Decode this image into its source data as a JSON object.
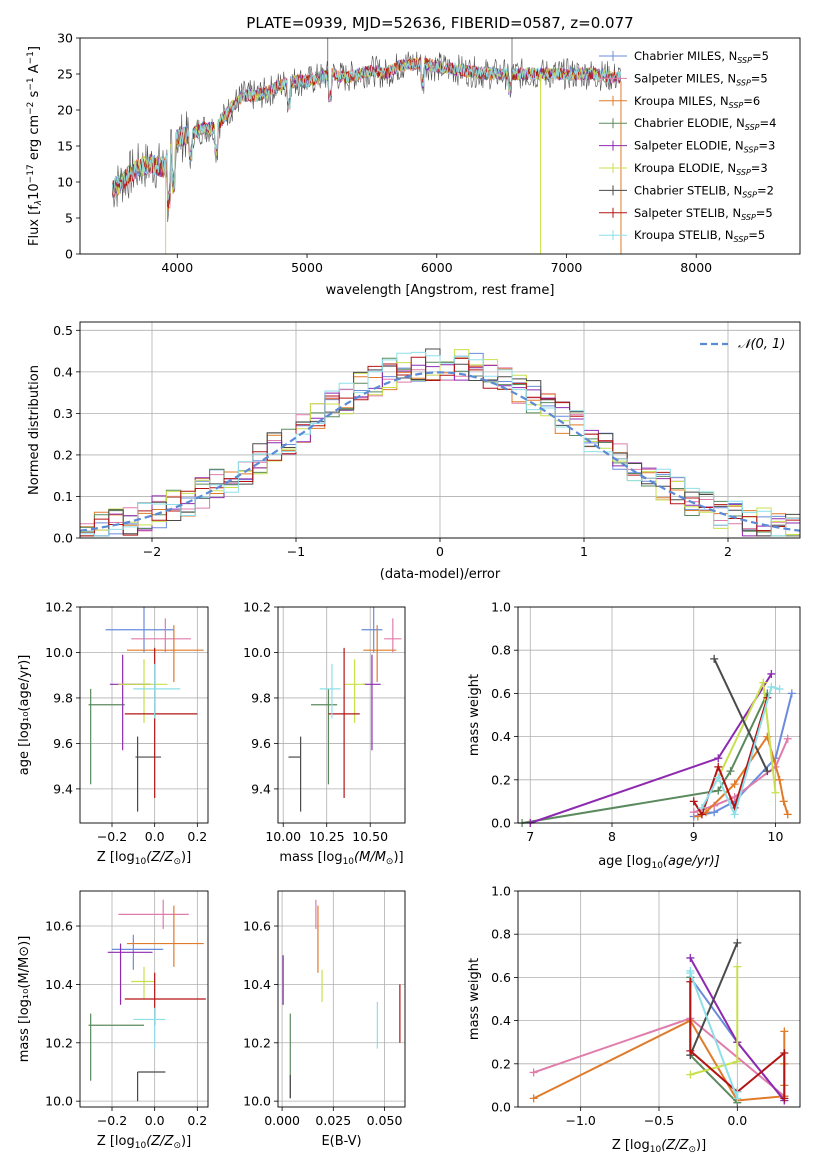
{
  "figure": {
    "title": "PLATE=0939, MJD=52636, FIBERID=0587, z=0.077"
  },
  "colors": {
    "Chabrier MILES": "#6a8cdc",
    "Salpeter MILES": "#e07cab",
    "Kroupa MILES": "#e07b2a",
    "Chabrier ELODIE": "#5b8a5e",
    "Salpeter ELODIE": "#8e2ab0",
    "Kroupa ELODIE": "#c8e04e",
    "Chabrier STELIB": "#4a4a4a",
    "Salpeter STELIB": "#b31515",
    "Kroupa STELIB": "#8edfe9"
  },
  "legend": [
    {
      "name": "Chabrier MILES",
      "n": "5"
    },
    {
      "name": "Salpeter MILES",
      "n": "5"
    },
    {
      "name": "Kroupa MILES",
      "n": "6"
    },
    {
      "name": "Chabrier ELODIE",
      "n": "4"
    },
    {
      "name": "Salpeter ELODIE",
      "n": "3"
    },
    {
      "name": "Kroupa ELODIE",
      "n": "3"
    },
    {
      "name": "Chabrier STELIB",
      "n": "2"
    },
    {
      "name": "Salpeter STELIB",
      "n": "5"
    },
    {
      "name": "Kroupa STELIB",
      "n": "5"
    }
  ],
  "legend_n_prefix": ", N",
  "legend_n_sub": "SSP",
  "legend_n_eq": "=",
  "chart_data": [
    {
      "id": "spectrum",
      "type": "line",
      "xlabel": "wavelength [Angstrom, rest frame]",
      "ylabel_parts": [
        "Flux [f",
        "λ",
        "10",
        "−17",
        " erg cm",
        "−2",
        " s",
        "−1",
        " A",
        "−1",
        "]"
      ],
      "xlim": [
        3250,
        8800
      ],
      "ylim": [
        0,
        30
      ],
      "xticks": [
        4000,
        5000,
        6000,
        7000,
        8000
      ],
      "yticks": [
        0,
        5,
        10,
        15,
        20,
        25,
        30
      ],
      "continuum": {
        "x": [
          3500,
          3600,
          3700,
          3800,
          3900,
          3950,
          4000,
          4100,
          4200,
          4300,
          4400,
          4500,
          4600,
          4700,
          4800,
          4900,
          5000,
          5100,
          5200,
          5300,
          5400,
          5500,
          5600,
          5700,
          5800,
          5900,
          6000,
          6200,
          6400,
          6600,
          6800,
          7000,
          7200,
          7400,
          7600,
          7800,
          8000,
          8200,
          8400,
          8600,
          8700
        ],
        "y": [
          9,
          10.5,
          12,
          12.5,
          12,
          14,
          16,
          16.5,
          17.5,
          17.5,
          20,
          22,
          22,
          22.5,
          23.5,
          24,
          24,
          24.5,
          25,
          24.5,
          25,
          25.5,
          25,
          26,
          26.5,
          26.5,
          26,
          25.5,
          25,
          25,
          25,
          25,
          25,
          24.5,
          24.5,
          24.5,
          24.5,
          24,
          24,
          24,
          24
        ]
      }
    },
    {
      "id": "residuals",
      "type": "histogram",
      "xlabel": "(data-model)/error",
      "ylabel": "Normed distribution",
      "xlim": [
        -2.5,
        2.5
      ],
      "ylim": [
        0,
        0.52
      ],
      "xticks": [
        -2,
        -1,
        0,
        1,
        2
      ],
      "yticks": [
        0.0,
        0.1,
        0.2,
        0.3,
        0.4,
        0.5
      ],
      "legend_label": "𝒩(0, 1)",
      "bin_width": 0.1,
      "gaussian": {
        "mean": 0,
        "sigma": 1
      }
    },
    {
      "id": "age-vs-Z",
      "type": "errorbar",
      "xlabel_pre": "Z [log",
      "xlabel_sub": "10",
      "xlabel_post": "(Z/Z",
      "xlabel_end": ")]",
      "ylabel": "age  [log₁₀(age/yr)]",
      "xlim": [
        -0.35,
        0.25
      ],
      "ylim": [
        9.25,
        10.2
      ],
      "xticks": [
        -0.2,
        0.0,
        0.2
      ],
      "yticks": [
        9.4,
        9.6,
        9.8,
        10.0,
        10.2
      ],
      "points": [
        {
          "model": "Chabrier MILES",
          "x": -0.05,
          "y": 10.1,
          "xerr": [
            0.18,
            0.14
          ],
          "yerr": [
            0.1,
            0.1
          ]
        },
        {
          "model": "Salpeter MILES",
          "x": 0.05,
          "y": 10.06,
          "xerr": [
            0.16,
            0.12
          ],
          "yerr": [
            0.06,
            0.09
          ]
        },
        {
          "model": "Kroupa MILES",
          "x": 0.09,
          "y": 10.01,
          "xerr": [
            0.22,
            0.14
          ],
          "yerr": [
            0.14,
            0.11
          ]
        },
        {
          "model": "Chabrier ELODIE",
          "x": -0.3,
          "y": 9.77,
          "xerr": [
            0.01,
            0.16
          ],
          "yerr": [
            0.35,
            0.07
          ]
        },
        {
          "model": "Salpeter ELODIE",
          "x": -0.15,
          "y": 9.86,
          "xerr": [
            0.06,
            0.13
          ],
          "yerr": [
            0.29,
            0.13
          ]
        },
        {
          "model": "Kroupa ELODIE",
          "x": -0.05,
          "y": 9.86,
          "xerr": [
            0.12,
            0.11
          ],
          "yerr": [
            0.17,
            0.11
          ]
        },
        {
          "model": "Chabrier STELIB",
          "x": -0.08,
          "y": 9.54,
          "xerr": [
            0.01,
            0.11
          ],
          "yerr": [
            0.24,
            0.09
          ]
        },
        {
          "model": "Salpeter STELIB",
          "x": 0.0,
          "y": 9.73,
          "xerr": [
            0.14,
            0.2
          ],
          "yerr": [
            0.37,
            0.29
          ]
        },
        {
          "model": "Kroupa STELIB",
          "x": 0.0,
          "y": 9.84,
          "xerr": [
            0.1,
            0.12
          ],
          "yerr": [
            0.13,
            0.11
          ]
        }
      ]
    },
    {
      "id": "age-vs-mass",
      "type": "errorbar",
      "xlabel_pre": "mass [log",
      "xlabel_sub": "10",
      "xlabel_post": "(M/M",
      "xlabel_end": ")]",
      "ylabel": "",
      "xlim": [
        9.97,
        10.7
      ],
      "ylim": [
        9.25,
        10.2
      ],
      "xticks": [
        10.0,
        10.25,
        10.5
      ],
      "yticks": [
        9.4,
        9.6,
        9.8,
        10.0,
        10.2
      ],
      "points": [
        {
          "model": "Chabrier MILES",
          "x": 10.52,
          "y": 10.1,
          "xerr": [
            0.07,
            0.05
          ],
          "yerr": [
            0.1,
            0.1
          ]
        },
        {
          "model": "Salpeter MILES",
          "x": 10.63,
          "y": 10.06,
          "xerr": [
            0.05,
            0.05
          ],
          "yerr": [
            0.06,
            0.09
          ]
        },
        {
          "model": "Kroupa MILES",
          "x": 10.54,
          "y": 10.01,
          "xerr": [
            0.08,
            0.11
          ],
          "yerr": [
            0.14,
            0.11
          ]
        },
        {
          "model": "Chabrier ELODIE",
          "x": 10.26,
          "y": 9.77,
          "xerr": [
            0.1,
            0.05
          ],
          "yerr": [
            0.35,
            0.07
          ]
        },
        {
          "model": "Salpeter ELODIE",
          "x": 10.51,
          "y": 9.86,
          "xerr": [
            0.05,
            0.05
          ],
          "yerr": [
            0.29,
            0.13
          ]
        },
        {
          "model": "Kroupa ELODIE",
          "x": 10.41,
          "y": 9.86,
          "xerr": [
            0.06,
            0.06
          ],
          "yerr": [
            0.17,
            0.11
          ]
        },
        {
          "model": "Chabrier STELIB",
          "x": 10.1,
          "y": 9.54,
          "xerr": [
            0.07,
            0.0
          ],
          "yerr": [
            0.24,
            0.09
          ]
        },
        {
          "model": "Salpeter STELIB",
          "x": 10.35,
          "y": 9.73,
          "xerr": [
            0.09,
            0.09
          ],
          "yerr": [
            0.37,
            0.29
          ]
        },
        {
          "model": "Kroupa STELIB",
          "x": 10.28,
          "y": 9.84,
          "xerr": [
            0.07,
            0.05
          ],
          "yerr": [
            0.13,
            0.11
          ]
        }
      ]
    },
    {
      "id": "weight-vs-age",
      "type": "line",
      "xlabel_pre": "age  [log",
      "xlabel_sub": "10",
      "xlabel_post": "(age/yr)]",
      "ylabel": "mass weight",
      "xlim": [
        6.85,
        10.3
      ],
      "ylim": [
        0,
        1.0
      ],
      "xticks": [
        7,
        8,
        9,
        10
      ],
      "yticks": [
        0.0,
        0.2,
        0.4,
        0.6,
        0.8,
        1.0
      ],
      "series": [
        {
          "model": "Chabrier MILES",
          "x": [
            9.0,
            9.25,
            9.5,
            10.0,
            10.2
          ],
          "y": [
            0.03,
            0.05,
            0.1,
            0.3,
            0.6
          ]
        },
        {
          "model": "Salpeter MILES",
          "x": [
            9.0,
            9.25,
            9.5,
            10.0,
            10.15
          ],
          "y": [
            0.05,
            0.08,
            0.12,
            0.26,
            0.39
          ]
        },
        {
          "model": "Kroupa MILES",
          "x": [
            9.05,
            9.15,
            9.5,
            9.9,
            10.05,
            10.1,
            10.15
          ],
          "y": [
            0.03,
            0.05,
            0.18,
            0.4,
            0.2,
            0.1,
            0.04
          ]
        },
        {
          "model": "Chabrier ELODIE",
          "x": [
            6.9,
            9.3,
            9.45,
            9.9
          ],
          "y": [
            0.0,
            0.15,
            0.24,
            0.6
          ]
        },
        {
          "model": "Salpeter ELODIE",
          "x": [
            7.0,
            9.3,
            9.95
          ],
          "y": [
            0.0,
            0.3,
            0.69
          ]
        },
        {
          "model": "Kroupa ELODIE",
          "x": [
            9.3,
            9.85,
            10.0
          ],
          "y": [
            0.21,
            0.65,
            0.14
          ]
        },
        {
          "model": "Chabrier STELIB",
          "x": [
            9.25,
            9.9
          ],
          "y": [
            0.76,
            0.24
          ]
        },
        {
          "model": "Salpeter STELIB",
          "x": [
            9.0,
            9.1,
            9.3,
            9.5,
            9.9
          ],
          "y": [
            0.1,
            0.04,
            0.26,
            0.07,
            0.58
          ]
        },
        {
          "model": "Kroupa STELIB",
          "x": [
            9.1,
            9.3,
            9.5,
            9.95,
            10.05
          ],
          "y": [
            0.07,
            0.21,
            0.04,
            0.63,
            0.62
          ]
        }
      ]
    },
    {
      "id": "mass-vs-Z",
      "type": "errorbar",
      "xlabel_pre": "Z [log",
      "xlabel_sub": "10",
      "xlabel_post": "(Z/Z",
      "xlabel_end": ")]",
      "ylabel": "mass [log₁₀(M/M⊙)]",
      "xlim": [
        -0.35,
        0.25
      ],
      "ylim": [
        9.98,
        10.72
      ],
      "xticks": [
        -0.2,
        0.0,
        0.2
      ],
      "yticks": [
        10.0,
        10.2,
        10.4,
        10.6
      ],
      "points": [
        {
          "model": "Chabrier MILES",
          "x": -0.1,
          "y": 10.52,
          "xerr": [
            0.1,
            0.14
          ],
          "yerr": [
            0.07,
            0.05
          ]
        },
        {
          "model": "Salpeter MILES",
          "x": 0.04,
          "y": 10.64,
          "xerr": [
            0.21,
            0.12
          ],
          "yerr": [
            0.05,
            0.05
          ]
        },
        {
          "model": "Kroupa MILES",
          "x": 0.09,
          "y": 10.54,
          "xerr": [
            0.22,
            0.14
          ],
          "yerr": [
            0.08,
            0.13
          ]
        },
        {
          "model": "Chabrier ELODIE",
          "x": -0.3,
          "y": 10.26,
          "xerr": [
            0.01,
            0.25
          ],
          "yerr": [
            0.19,
            0.04
          ]
        },
        {
          "model": "Salpeter ELODIE",
          "x": -0.16,
          "y": 10.51,
          "xerr": [
            0.06,
            0.15
          ],
          "yerr": [
            0.18,
            0.03
          ]
        },
        {
          "model": "Kroupa ELODIE",
          "x": -0.05,
          "y": 10.41,
          "xerr": [
            0.06,
            0.05
          ],
          "yerr": [
            0.06,
            0.05
          ]
        },
        {
          "model": "Chabrier STELIB",
          "x": -0.08,
          "y": 10.1,
          "xerr": [
            0.0,
            0.13
          ],
          "yerr": [
            0.1,
            0.0
          ]
        },
        {
          "model": "Salpeter STELIB",
          "x": 0.0,
          "y": 10.35,
          "xerr": [
            0.14,
            0.24
          ],
          "yerr": [
            0.09,
            0.09
          ]
        },
        {
          "model": "Kroupa STELIB",
          "x": 0.0,
          "y": 10.28,
          "xerr": [
            0.1,
            0.05
          ],
          "yerr": [
            0.1,
            0.04
          ]
        }
      ]
    },
    {
      "id": "mass-vs-ebv",
      "type": "errorbar",
      "xlabel": "E(B-V)",
      "ylabel": "",
      "xlim": [
        -0.002,
        0.06
      ],
      "ylim": [
        9.98,
        10.72
      ],
      "xticks": [
        0.0,
        0.025,
        0.05
      ],
      "yticks": [
        10.0,
        10.2,
        10.4,
        10.6
      ],
      "points": [
        {
          "model": "Salpeter ELODIE",
          "x": 0.0005,
          "y": 10.4,
          "xerr": [
            0,
            0
          ],
          "yerr": [
            0.07,
            0.1
          ]
        },
        {
          "model": "Chabrier ELODIE",
          "x": 0.004,
          "y": 10.15,
          "xerr": [
            0,
            0
          ],
          "yerr": [
            0.14,
            0.15
          ]
        },
        {
          "model": "Chabrier STELIB",
          "x": 0.004,
          "y": 10.05,
          "xerr": [
            0,
            0
          ],
          "yerr": [
            0.04,
            0.04
          ]
        },
        {
          "model": "Salpeter MILES",
          "x": 0.0165,
          "y": 10.64,
          "xerr": [
            0,
            0
          ],
          "yerr": [
            0.05,
            0.05
          ]
        },
        {
          "model": "Kroupa MILES",
          "x": 0.0175,
          "y": 10.54,
          "xerr": [
            0,
            0
          ],
          "yerr": [
            0.1,
            0.13
          ]
        },
        {
          "model": "Kroupa ELODIE",
          "x": 0.0195,
          "y": 10.4,
          "xerr": [
            0,
            0
          ],
          "yerr": [
            0.06,
            0.05
          ]
        },
        {
          "model": "Kroupa STELIB",
          "x": 0.0465,
          "y": 10.28,
          "xerr": [
            0,
            0
          ],
          "yerr": [
            0.1,
            0.06
          ]
        },
        {
          "model": "Salpeter STELIB",
          "x": 0.0575,
          "y": 10.3,
          "xerr": [
            0,
            0
          ],
          "yerr": [
            0.1,
            0.1
          ]
        }
      ]
    },
    {
      "id": "weight-vs-Z",
      "type": "line",
      "xlabel_pre": "Z [log",
      "xlabel_sub": "10",
      "xlabel_post": "(Z/Z",
      "xlabel_end": ")]",
      "ylabel": "mass weight",
      "xlim": [
        -1.4,
        0.4
      ],
      "ylim": [
        0,
        1.0
      ],
      "xticks": [
        -1.0,
        -0.5,
        0.0
      ],
      "yticks": [
        0.0,
        0.2,
        0.4,
        0.6,
        0.8,
        1.0
      ],
      "series": [
        {
          "model": "Chabrier MILES",
          "x": [
            -0.3,
            0.0,
            0.3,
            0.3
          ],
          "y": [
            0.6,
            0.3,
            0.03,
            0.05
          ]
        },
        {
          "model": "Salpeter MILES",
          "x": [
            -1.3,
            -0.3,
            0.3
          ],
          "y": [
            0.16,
            0.41,
            0.05
          ]
        },
        {
          "model": "Kroupa MILES",
          "x": [
            -1.3,
            -0.3,
            0.0,
            0.3,
            0.3,
            0.3,
            0.3
          ],
          "y": [
            0.04,
            0.4,
            0.03,
            0.05,
            0.1,
            0.2,
            0.35
          ]
        },
        {
          "model": "Chabrier ELODIE",
          "x": [
            -0.3,
            -0.3,
            0.0
          ],
          "y": [
            0.6,
            0.24,
            0.02
          ]
        },
        {
          "model": "Salpeter ELODIE",
          "x": [
            -0.3,
            0.0,
            0.3
          ],
          "y": [
            0.69,
            0.3,
            0.03
          ]
        },
        {
          "model": "Kroupa ELODIE",
          "x": [
            -0.3,
            0.0,
            0.0
          ],
          "y": [
            0.15,
            0.21,
            0.65
          ]
        },
        {
          "model": "Chabrier STELIB",
          "x": [
            -0.3,
            0.0
          ],
          "y": [
            0.24,
            0.76
          ]
        },
        {
          "model": "Salpeter STELIB",
          "x": [
            -0.3,
            -0.3,
            0.0,
            0.3,
            0.3
          ],
          "y": [
            0.58,
            0.26,
            0.07,
            0.25,
            0.04
          ]
        },
        {
          "model": "Kroupa STELIB",
          "x": [
            -0.3,
            -0.3,
            0.0,
            0.0
          ],
          "y": [
            0.63,
            0.62,
            0.04,
            0.07
          ]
        }
      ]
    }
  ]
}
